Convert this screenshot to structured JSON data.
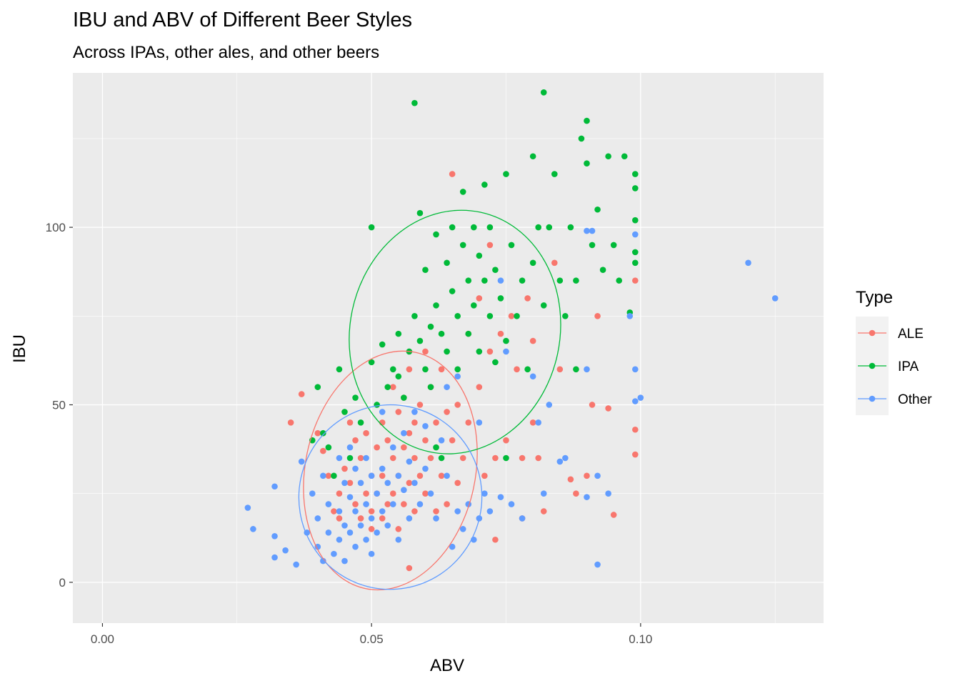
{
  "chart_data": {
    "type": "scatter",
    "title": "IBU and ABV of Different Beer Styles",
    "subtitle": "Across IPAs, other ales, and other beers",
    "xlabel": "ABV",
    "ylabel": "IBU",
    "xlim": [
      -0.0055,
      0.134
    ],
    "ylim": [
      -11.5,
      143.5
    ],
    "x_ticks": [
      0.0,
      0.05,
      0.1
    ],
    "x_tick_labels": [
      "0.00",
      "0.05",
      "0.10"
    ],
    "y_ticks": [
      0,
      50,
      100
    ],
    "y_tick_labels": [
      "0",
      "50",
      "100"
    ],
    "grid": true,
    "background": "#EBEBEB",
    "legend": {
      "title": "Type",
      "position": "right"
    },
    "series": [
      {
        "name": "ALE",
        "color": "#F8766D",
        "points": [
          [
            0.035,
            45
          ],
          [
            0.037,
            53
          ],
          [
            0.04,
            42
          ],
          [
            0.041,
            37
          ],
          [
            0.042,
            30
          ],
          [
            0.043,
            20
          ],
          [
            0.044,
            25
          ],
          [
            0.044,
            18
          ],
          [
            0.045,
            32
          ],
          [
            0.046,
            45
          ],
          [
            0.046,
            28
          ],
          [
            0.047,
            40
          ],
          [
            0.047,
            22
          ],
          [
            0.048,
            35
          ],
          [
            0.048,
            18
          ],
          [
            0.049,
            42
          ],
          [
            0.049,
            25
          ],
          [
            0.05,
            30
          ],
          [
            0.05,
            20
          ],
          [
            0.05,
            15
          ],
          [
            0.051,
            38
          ],
          [
            0.051,
            25
          ],
          [
            0.052,
            45
          ],
          [
            0.052,
            30
          ],
          [
            0.052,
            18
          ],
          [
            0.053,
            40
          ],
          [
            0.053,
            22
          ],
          [
            0.054,
            55
          ],
          [
            0.054,
            35
          ],
          [
            0.054,
            25
          ],
          [
            0.055,
            48
          ],
          [
            0.055,
            30
          ],
          [
            0.055,
            15
          ],
          [
            0.056,
            52
          ],
          [
            0.056,
            38
          ],
          [
            0.056,
            22
          ],
          [
            0.057,
            60
          ],
          [
            0.057,
            42
          ],
          [
            0.057,
            28
          ],
          [
            0.058,
            45
          ],
          [
            0.058,
            35
          ],
          [
            0.058,
            20
          ],
          [
            0.059,
            50
          ],
          [
            0.059,
            30
          ],
          [
            0.06,
            65
          ],
          [
            0.06,
            40
          ],
          [
            0.06,
            25
          ],
          [
            0.061,
            55
          ],
          [
            0.061,
            35
          ],
          [
            0.062,
            45
          ],
          [
            0.062,
            20
          ],
          [
            0.063,
            60
          ],
          [
            0.063,
            30
          ],
          [
            0.064,
            48
          ],
          [
            0.064,
            22
          ],
          [
            0.065,
            115
          ],
          [
            0.065,
            40
          ],
          [
            0.066,
            50
          ],
          [
            0.066,
            28
          ],
          [
            0.067,
            35
          ],
          [
            0.068,
            70
          ],
          [
            0.068,
            45
          ],
          [
            0.07,
            80
          ],
          [
            0.07,
            55
          ],
          [
            0.071,
            30
          ],
          [
            0.072,
            95
          ],
          [
            0.072,
            65
          ],
          [
            0.073,
            35
          ],
          [
            0.073,
            12
          ],
          [
            0.074,
            70
          ],
          [
            0.075,
            40
          ],
          [
            0.076,
            75
          ],
          [
            0.077,
            60
          ],
          [
            0.078,
            35
          ],
          [
            0.078,
            18
          ],
          [
            0.079,
            80
          ],
          [
            0.08,
            68
          ],
          [
            0.08,
            45
          ],
          [
            0.081,
            35
          ],
          [
            0.082,
            20
          ],
          [
            0.084,
            90
          ],
          [
            0.085,
            60
          ],
          [
            0.087,
            29
          ],
          [
            0.088,
            25
          ],
          [
            0.09,
            30
          ],
          [
            0.091,
            50
          ],
          [
            0.092,
            75
          ],
          [
            0.094,
            49
          ],
          [
            0.095,
            19
          ],
          [
            0.099,
            85
          ],
          [
            0.099,
            43
          ],
          [
            0.099,
            36
          ],
          [
            0.057,
            4
          ]
        ]
      },
      {
        "name": "IPA",
        "color": "#00BA38",
        "points": [
          [
            0.039,
            40
          ],
          [
            0.04,
            55
          ],
          [
            0.041,
            42
          ],
          [
            0.042,
            38
          ],
          [
            0.043,
            30
          ],
          [
            0.044,
            60
          ],
          [
            0.045,
            48
          ],
          [
            0.046,
            35
          ],
          [
            0.047,
            52
          ],
          [
            0.048,
            45
          ],
          [
            0.05,
            100
          ],
          [
            0.05,
            62
          ],
          [
            0.051,
            50
          ],
          [
            0.052,
            67
          ],
          [
            0.053,
            55
          ],
          [
            0.054,
            60
          ],
          [
            0.055,
            58
          ],
          [
            0.055,
            70
          ],
          [
            0.056,
            52
          ],
          [
            0.057,
            65
          ],
          [
            0.058,
            135
          ],
          [
            0.058,
            75
          ],
          [
            0.059,
            68
          ],
          [
            0.059,
            104
          ],
          [
            0.06,
            60
          ],
          [
            0.06,
            88
          ],
          [
            0.061,
            72
          ],
          [
            0.061,
            55
          ],
          [
            0.062,
            98
          ],
          [
            0.062,
            78
          ],
          [
            0.063,
            70
          ],
          [
            0.063,
            35
          ],
          [
            0.064,
            90
          ],
          [
            0.064,
            65
          ],
          [
            0.065,
            100
          ],
          [
            0.065,
            82
          ],
          [
            0.066,
            75
          ],
          [
            0.066,
            60
          ],
          [
            0.067,
            110
          ],
          [
            0.067,
            95
          ],
          [
            0.068,
            85
          ],
          [
            0.068,
            70
          ],
          [
            0.069,
            100
          ],
          [
            0.069,
            78
          ],
          [
            0.07,
            92
          ],
          [
            0.07,
            65
          ],
          [
            0.071,
            112
          ],
          [
            0.071,
            85
          ],
          [
            0.072,
            100
          ],
          [
            0.072,
            75
          ],
          [
            0.073,
            88
          ],
          [
            0.073,
            62
          ],
          [
            0.074,
            80
          ],
          [
            0.075,
            115
          ],
          [
            0.075,
            68
          ],
          [
            0.076,
            95
          ],
          [
            0.077,
            75
          ],
          [
            0.078,
            85
          ],
          [
            0.079,
            60
          ],
          [
            0.08,
            120
          ],
          [
            0.08,
            90
          ],
          [
            0.081,
            100
          ],
          [
            0.082,
            138
          ],
          [
            0.082,
            78
          ],
          [
            0.083,
            100
          ],
          [
            0.084,
            115
          ],
          [
            0.085,
            85
          ],
          [
            0.086,
            75
          ],
          [
            0.087,
            100
          ],
          [
            0.088,
            85
          ],
          [
            0.089,
            125
          ],
          [
            0.09,
            130
          ],
          [
            0.09,
            118
          ],
          [
            0.091,
            95
          ],
          [
            0.092,
            105
          ],
          [
            0.093,
            88
          ],
          [
            0.094,
            120
          ],
          [
            0.095,
            95
          ],
          [
            0.096,
            85
          ],
          [
            0.097,
            120
          ],
          [
            0.098,
            76
          ],
          [
            0.099,
            115
          ],
          [
            0.099,
            111
          ],
          [
            0.099,
            102
          ],
          [
            0.099,
            93
          ],
          [
            0.099,
            90
          ],
          [
            0.088,
            60
          ],
          [
            0.075,
            35
          ],
          [
            0.062,
            38
          ]
        ]
      },
      {
        "name": "Other",
        "color": "#619CFF",
        "points": [
          [
            0.027,
            21
          ],
          [
            0.028,
            15
          ],
          [
            0.032,
            27
          ],
          [
            0.032,
            13
          ],
          [
            0.032,
            7
          ],
          [
            0.034,
            9
          ],
          [
            0.036,
            5
          ],
          [
            0.037,
            34
          ],
          [
            0.038,
            14
          ],
          [
            0.039,
            25
          ],
          [
            0.04,
            18
          ],
          [
            0.04,
            10
          ],
          [
            0.041,
            30
          ],
          [
            0.041,
            6
          ],
          [
            0.042,
            22
          ],
          [
            0.042,
            14
          ],
          [
            0.043,
            8
          ],
          [
            0.044,
            35
          ],
          [
            0.044,
            20
          ],
          [
            0.044,
            12
          ],
          [
            0.045,
            28
          ],
          [
            0.045,
            16
          ],
          [
            0.045,
            6
          ],
          [
            0.046,
            38
          ],
          [
            0.046,
            24
          ],
          [
            0.046,
            14
          ],
          [
            0.047,
            32
          ],
          [
            0.047,
            20
          ],
          [
            0.047,
            10
          ],
          [
            0.048,
            28
          ],
          [
            0.048,
            16
          ],
          [
            0.049,
            35
          ],
          [
            0.049,
            22
          ],
          [
            0.049,
            12
          ],
          [
            0.05,
            30
          ],
          [
            0.05,
            18
          ],
          [
            0.05,
            8
          ],
          [
            0.051,
            25
          ],
          [
            0.051,
            14
          ],
          [
            0.052,
            48
          ],
          [
            0.052,
            32
          ],
          [
            0.052,
            20
          ],
          [
            0.053,
            28
          ],
          [
            0.053,
            16
          ],
          [
            0.054,
            38
          ],
          [
            0.054,
            22
          ],
          [
            0.055,
            30
          ],
          [
            0.055,
            12
          ],
          [
            0.056,
            42
          ],
          [
            0.056,
            26
          ],
          [
            0.057,
            34
          ],
          [
            0.057,
            18
          ],
          [
            0.058,
            28
          ],
          [
            0.059,
            22
          ],
          [
            0.06,
            32
          ],
          [
            0.061,
            25
          ],
          [
            0.062,
            18
          ],
          [
            0.063,
            40
          ],
          [
            0.064,
            30
          ],
          [
            0.065,
            10
          ],
          [
            0.066,
            20
          ],
          [
            0.067,
            15
          ],
          [
            0.068,
            22
          ],
          [
            0.069,
            12
          ],
          [
            0.07,
            18
          ],
          [
            0.071,
            25
          ],
          [
            0.072,
            20
          ],
          [
            0.074,
            85
          ],
          [
            0.074,
            24
          ],
          [
            0.075,
            65
          ],
          [
            0.076,
            22
          ],
          [
            0.078,
            18
          ],
          [
            0.08,
            58
          ],
          [
            0.081,
            45
          ],
          [
            0.082,
            25
          ],
          [
            0.083,
            50
          ],
          [
            0.085,
            34
          ],
          [
            0.086,
            35
          ],
          [
            0.09,
            99
          ],
          [
            0.09,
            60
          ],
          [
            0.09,
            24
          ],
          [
            0.091,
            99
          ],
          [
            0.092,
            30
          ],
          [
            0.092,
            5
          ],
          [
            0.094,
            25
          ],
          [
            0.098,
            75
          ],
          [
            0.099,
            98
          ],
          [
            0.099,
            60
          ],
          [
            0.099,
            51
          ],
          [
            0.1,
            52
          ],
          [
            0.12,
            90
          ],
          [
            0.125,
            80
          ],
          [
            0.058,
            48
          ],
          [
            0.06,
            44
          ],
          [
            0.064,
            55
          ],
          [
            0.066,
            58
          ],
          [
            0.07,
            45
          ]
        ]
      }
    ],
    "ellipses": [
      {
        "series": "ALE",
        "center": [
          0.0535,
          31.5
        ],
        "semi_axes": [
          0.0158,
          34
        ],
        "angle_deg": 12
      },
      {
        "series": "IPA",
        "center": [
          0.0655,
          70.5
        ],
        "semi_axes": [
          0.0195,
          34.5
        ],
        "angle_deg": 12
      },
      {
        "series": "Other",
        "center": [
          0.0535,
          24
        ],
        "semi_axes": [
          0.017,
          26
        ],
        "angle_deg": 12
      }
    ]
  }
}
